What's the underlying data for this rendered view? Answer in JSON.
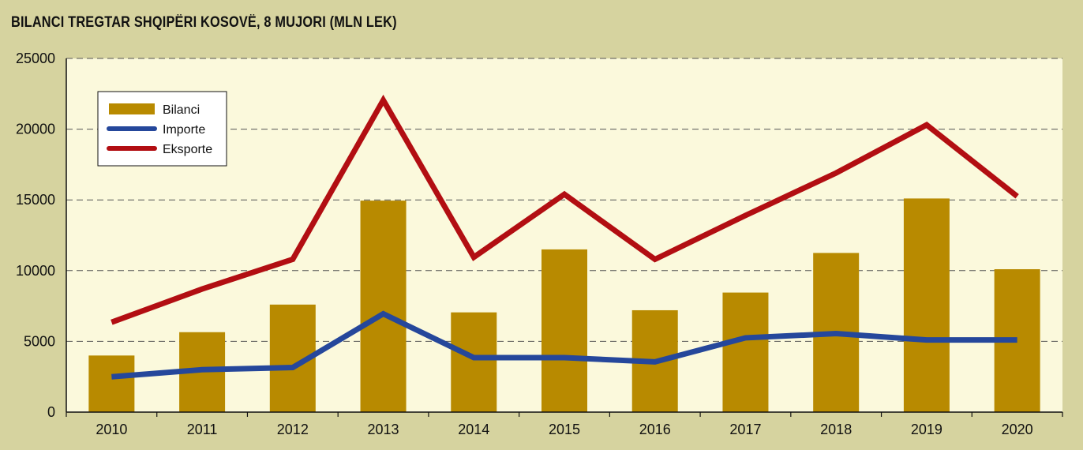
{
  "chart_data": {
    "type": "bar",
    "title": "BILANCI TREGTAR SHQIPËRI KOSOVË, 8 MUJORI (MLN LEK)",
    "categories": [
      "2010",
      "2011",
      "2012",
      "2013",
      "2014",
      "2015",
      "2016",
      "2017",
      "2018",
      "2019",
      "2020"
    ],
    "series": [
      {
        "name": "Bilanci",
        "kind": "bar",
        "color": "#b88a00",
        "values": [
          4000,
          5650,
          7600,
          14950,
          7050,
          11500,
          7200,
          8450,
          11250,
          15100,
          10100
        ]
      },
      {
        "name": "Importe",
        "kind": "line",
        "color": "#25479b",
        "values": [
          2500,
          3000,
          3150,
          6950,
          3850,
          3850,
          3550,
          5250,
          5550,
          5100,
          5100
        ]
      },
      {
        "name": "Eksporte",
        "kind": "line",
        "color": "#b20e12",
        "values": [
          6350,
          8700,
          10800,
          22050,
          10950,
          15400,
          10800,
          13900,
          16900,
          20300,
          15250
        ]
      }
    ],
    "ylim": [
      0,
      25000
    ],
    "yticks": [
      "0",
      "5000",
      "10000",
      "15000",
      "20000",
      "25000"
    ],
    "grid": true,
    "legend_position": "top-left",
    "plot_background": "#fbf9dc"
  }
}
